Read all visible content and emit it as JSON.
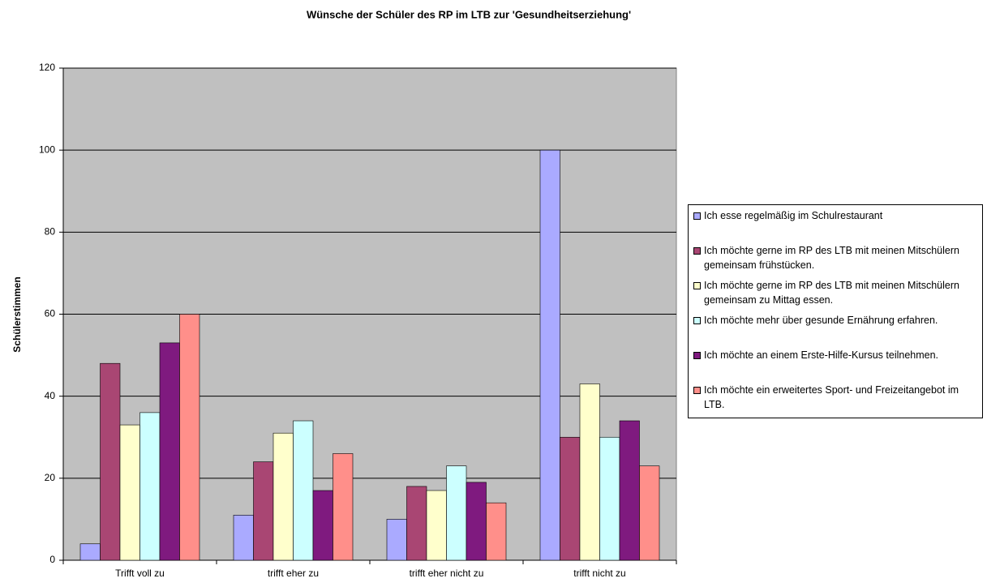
{
  "chart_data": {
    "type": "bar",
    "title": "Wünsche der Schüler des RP im LTB zur 'Gesundheitserziehung'",
    "ylabel": "Schülerstimmen",
    "categories": [
      "Trifft voll zu",
      "trifft eher zu",
      "trifft eher nicht zu",
      "trifft nicht zu"
    ],
    "series": [
      {
        "name": "Ich esse regelmäßig im Schulrestaurant",
        "color": "#aaaaff",
        "values": [
          4,
          11,
          10,
          100
        ]
      },
      {
        "name": "Ich möchte gerne im RP des LTB mit meinen Mitschülern gemeinsam frühstücken.",
        "color": "#a94673",
        "values": [
          48,
          24,
          18,
          30
        ]
      },
      {
        "name": "Ich möchte gerne im RP des LTB mit meinen Mitschülern gemeinsam zu Mittag essen.",
        "color": "#ffffcc",
        "values": [
          33,
          31,
          17,
          43
        ]
      },
      {
        "name": "Ich möchte mehr über gesunde Ernährung erfahren.",
        "color": "#ccffff",
        "values": [
          36,
          34,
          23,
          30
        ]
      },
      {
        "name": "Ich möchte an einem Erste-Hilfe-Kursus teilnehmen.",
        "color": "#7f1a7f",
        "values": [
          53,
          17,
          19,
          34
        ]
      },
      {
        "name": "Ich möchte  ein erweitertes Sport- und Freizeitangebot im LTB.",
        "color": "#ff8f8a",
        "values": [
          60,
          26,
          14,
          23
        ]
      }
    ],
    "ylim": [
      0,
      120
    ],
    "yticks": [
      0,
      20,
      40,
      60,
      80,
      100,
      120
    ],
    "grid": true,
    "legend": "right"
  }
}
